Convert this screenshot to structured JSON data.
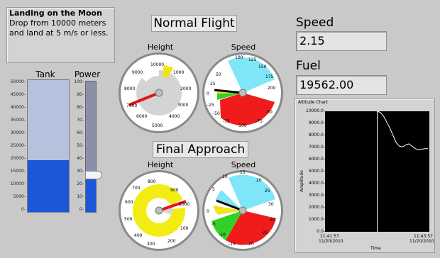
{
  "instructions": {
    "title": "Landing on the Moon",
    "line1": "Drop from 10000 meters",
    "line2": "and land at 5 m/s or less."
  },
  "sections": {
    "normal_flight": "Normal Flight",
    "final_approach": "Final Approach"
  },
  "tank": {
    "label": "Tank",
    "ticks": [
      "50000",
      "45000",
      "40000",
      "35000",
      "30000",
      "25000",
      "20000",
      "15000",
      "10000",
      "5000",
      "0"
    ],
    "level_fraction": 0.39
  },
  "power": {
    "label": "Power",
    "ticks": [
      "100",
      "90",
      "80",
      "70",
      "60",
      "50",
      "40",
      "30",
      "20",
      "10",
      "0"
    ],
    "level_fraction": 0.28
  },
  "gauges": {
    "nf_height": {
      "label": "Height",
      "ticks": [
        "10000",
        "1000",
        "2000",
        "3000",
        "4000",
        "5000",
        "6000",
        "7000",
        "8000",
        "9000"
      ]
    },
    "nf_speed": {
      "label": "Speed",
      "ticks": [
        "100",
        "125",
        "150",
        "175",
        "200",
        "50",
        "25",
        "0",
        "-25",
        "-50",
        "-75",
        "-100",
        "-75",
        "-50"
      ]
    },
    "fa_height": {
      "label": "Height",
      "ticks": [
        "800",
        "900",
        "1000",
        "100",
        "200",
        "300",
        "400",
        "500",
        "600",
        "700"
      ]
    },
    "fa_speed": {
      "label": "Speed",
      "ticks": [
        "10",
        "15",
        "20",
        "25",
        "30",
        "5",
        "0",
        "-5",
        "-10",
        "-15",
        "-20",
        "-25",
        "-30"
      ]
    }
  },
  "speed": {
    "label": "Speed",
    "value": "2.15"
  },
  "fuel": {
    "label": "Fuel",
    "value": "19562.00"
  },
  "chart_data": {
    "type": "line",
    "title": "Altitude Chart",
    "xlabel": "Time",
    "ylabel": "Amplitude",
    "y_ticks": [
      "10000.0-",
      "9000.0-",
      "8000.0-",
      "7000.0-",
      "6000.0-",
      "5000.0-",
      "4000.0-",
      "3000.0-",
      "2000.0-",
      "1000.0-",
      "0.0-"
    ],
    "x_ticks": [
      {
        "time": "11:41:57",
        "date": "11/20/2010"
      },
      {
        "time": "11:43:57",
        "date": "11/20/2010"
      }
    ],
    "ylim": [
      0,
      10000
    ],
    "series": [
      {
        "values": [
          10000,
          9900,
          9600,
          9100,
          8600,
          8000,
          7400,
          7100,
          7050,
          7200,
          7300,
          7100,
          6900,
          6800,
          6850,
          6900,
          6900
        ]
      }
    ],
    "cursor_x_fraction": 0.5,
    "grid": false
  }
}
